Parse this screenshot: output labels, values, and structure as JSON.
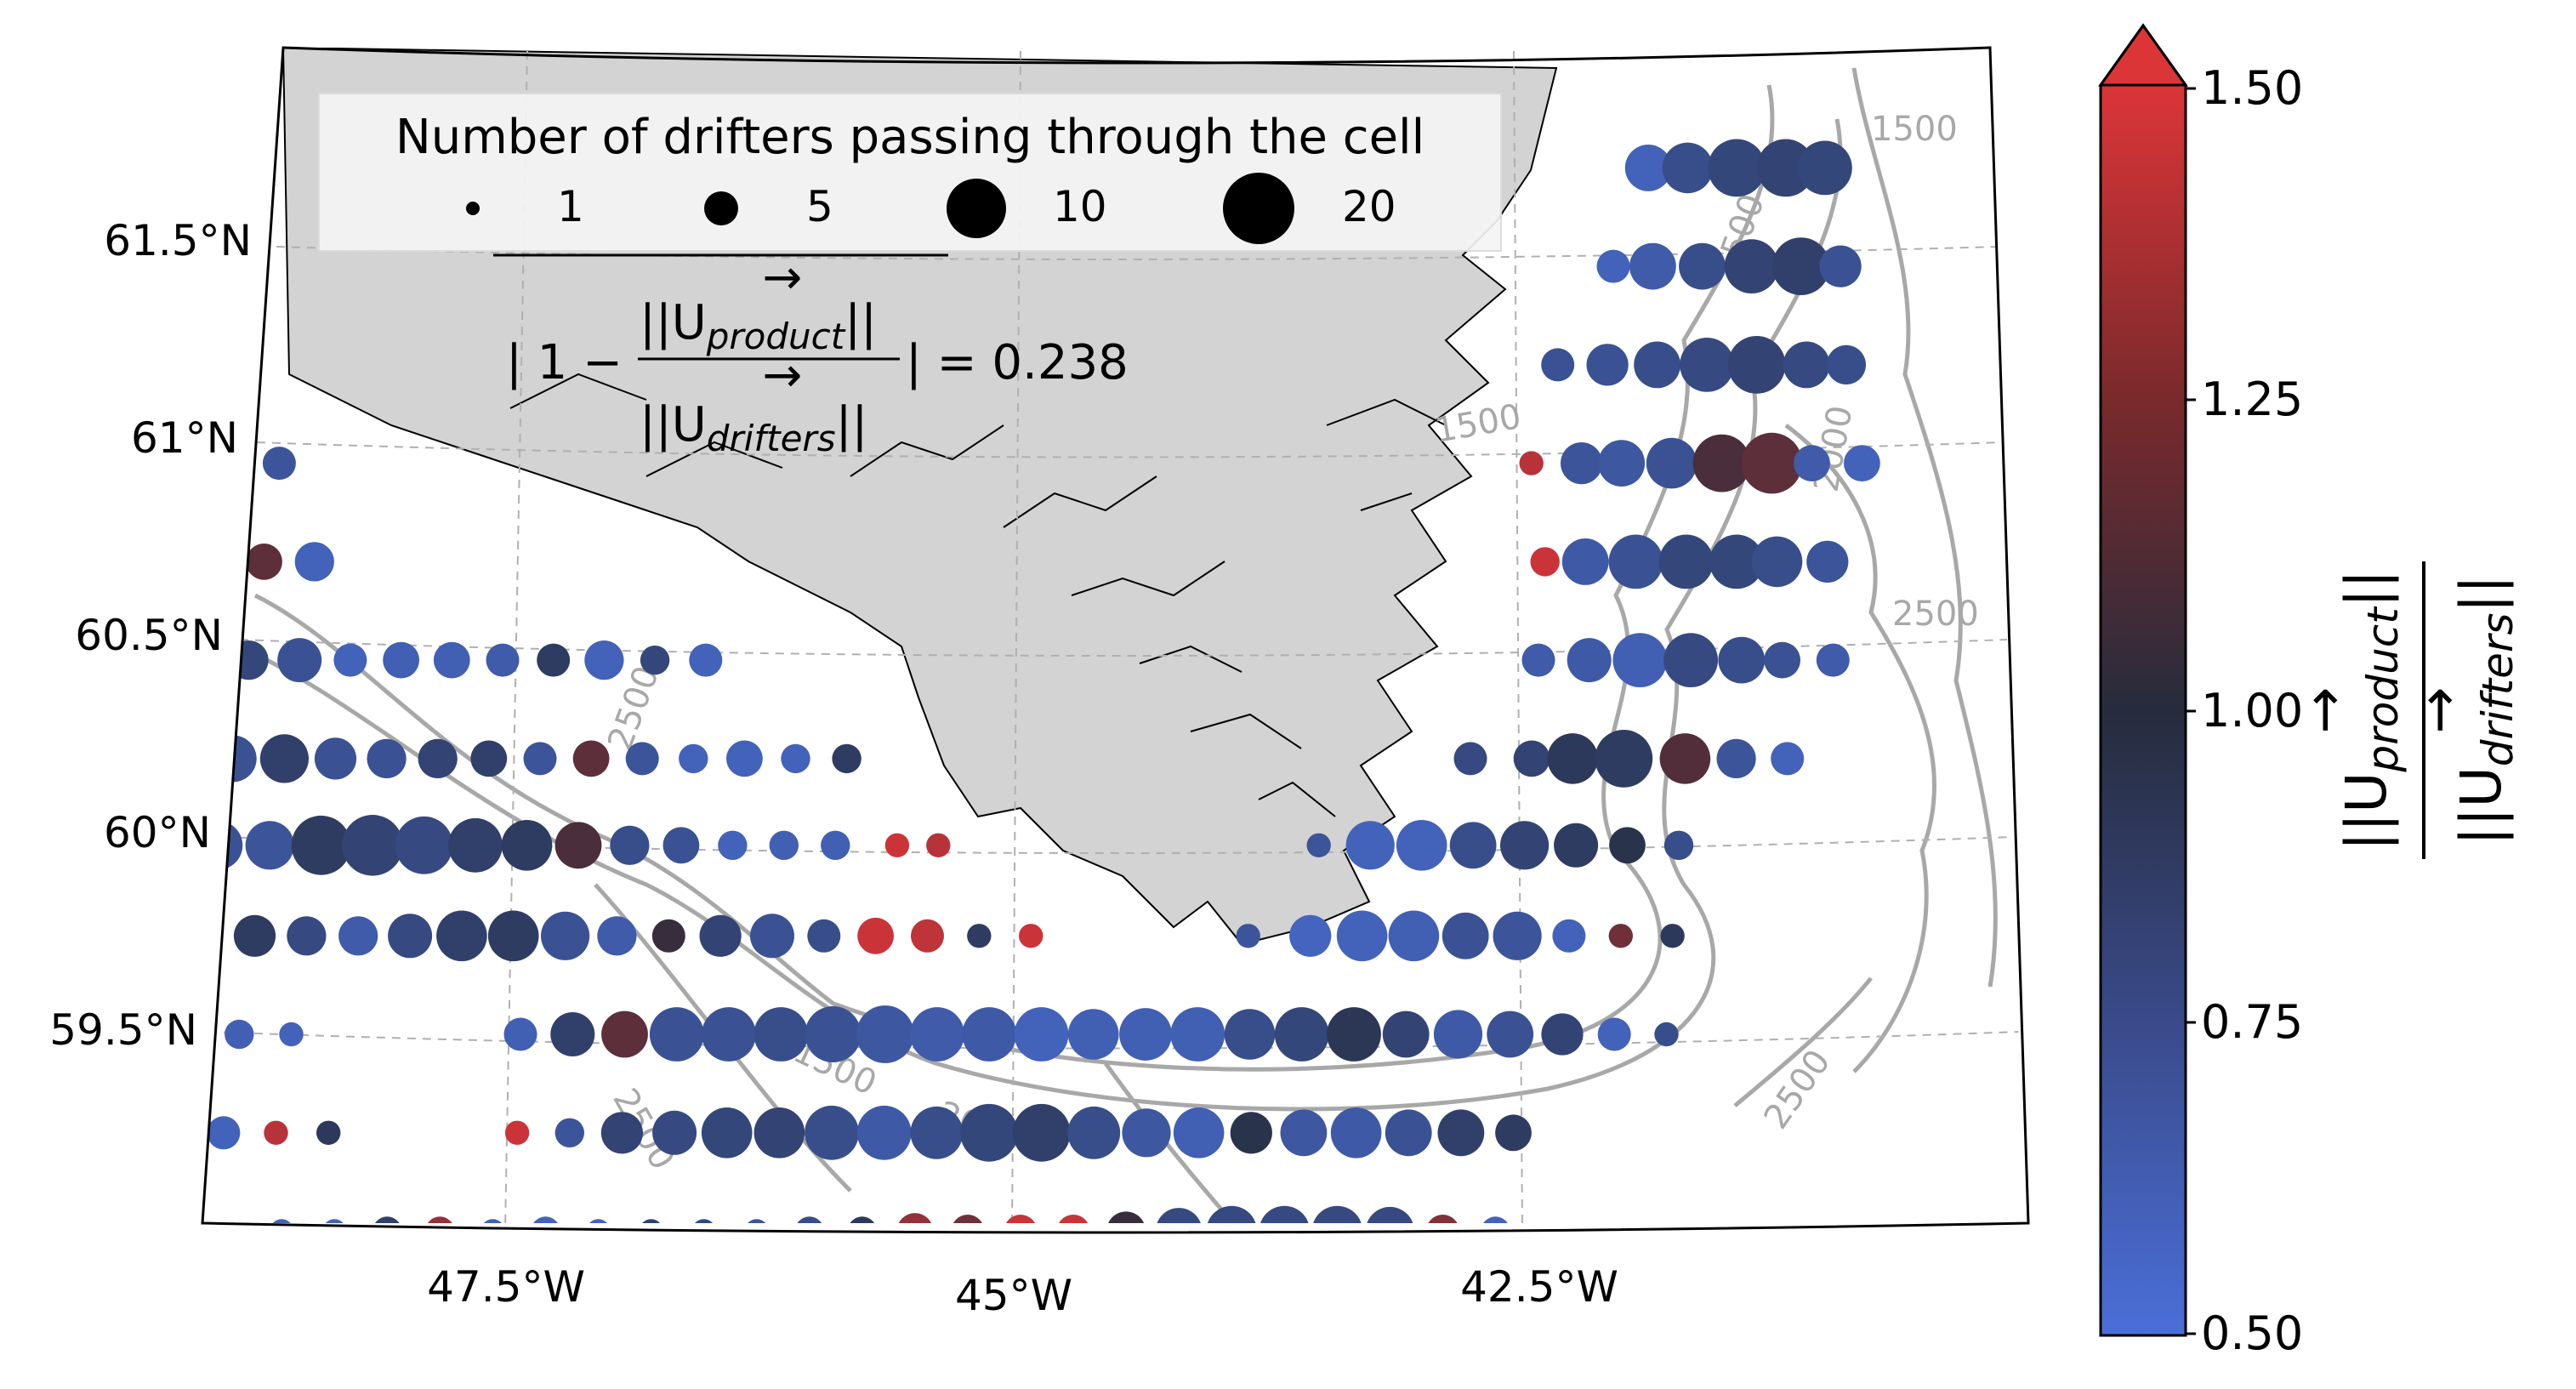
{
  "legend": {
    "title": "Number of drifters passing through the cell",
    "sizes": [
      "1",
      "5",
      "10",
      "20"
    ]
  },
  "annotation": {
    "prefix": "| 1 −",
    "numerator": "||U",
    "numerator_sub": "product",
    "denominator": "||U",
    "denominator_sub": "drifters",
    "bars": "||",
    "suffix": "|  = 0.238",
    "arrow": "→"
  },
  "axes": {
    "lat_labels": [
      "61.5°N",
      "61°N",
      "60.5°N",
      "60°N",
      "59.5°N"
    ],
    "lon_labels": [
      "47.5°W",
      "45°W",
      "42.5°W"
    ]
  },
  "contour_labels": [
    "1500",
    "2500",
    "2500",
    "2500",
    "1500",
    "2000",
    "1500",
    "2000",
    "1500",
    "2500"
  ],
  "colorbar": {
    "ticks": [
      "1.50",
      "1.25",
      "1.00",
      "0.75",
      "0.50"
    ],
    "label_num": "||U",
    "label_num_sub": "product",
    "label_den": "||U",
    "label_den_sub": "drifters",
    "label_bars": "||",
    "arrow": "→",
    "range": [
      0.5,
      1.5
    ],
    "extend": "max",
    "colors": {
      "low": "#4a6fd8",
      "mid": "#262c3c",
      "high": "#dc3538"
    }
  },
  "chart_data": {
    "type": "scatter",
    "title": "",
    "xlabel": "",
    "ylabel": "",
    "value_range": [
      0.5,
      1.5
    ],
    "summary_value": 0.238,
    "rows": [
      {
        "lat": 61.7,
        "points": [
          [
            -41.8,
            0.6,
            8
          ],
          [
            -41.6,
            0.75,
            10
          ],
          [
            -41.35,
            0.8,
            14
          ],
          [
            -41.1,
            0.82,
            14
          ],
          [
            -40.9,
            0.8,
            12
          ]
        ]
      },
      {
        "lat": 61.45,
        "points": [
          [
            -42.0,
            0.6,
            3
          ],
          [
            -41.8,
            0.65,
            8
          ],
          [
            -41.55,
            0.75,
            8
          ],
          [
            -41.3,
            0.82,
            12
          ],
          [
            -41.05,
            0.85,
            14
          ],
          [
            -40.85,
            0.72,
            6
          ]
        ]
      },
      {
        "lat": 61.2,
        "points": [
          [
            -42.3,
            0.72,
            3
          ],
          [
            -42.05,
            0.72,
            6
          ],
          [
            -41.8,
            0.75,
            8
          ],
          [
            -41.55,
            0.78,
            12
          ],
          [
            -41.3,
            0.82,
            14
          ],
          [
            -41.05,
            0.78,
            8
          ],
          [
            -40.85,
            0.75,
            5
          ]
        ]
      },
      {
        "lat": 60.95,
        "points": [
          [
            -48.95,
            1.15,
            4
          ],
          [
            -48.7,
            0.7,
            3
          ],
          [
            -42.45,
            1.4,
            1
          ],
          [
            -42.2,
            0.7,
            6
          ],
          [
            -42.0,
            0.68,
            8
          ],
          [
            -41.75,
            0.72,
            10
          ],
          [
            -41.5,
            1.1,
            14
          ],
          [
            -41.25,
            1.15,
            16
          ],
          [
            -41.05,
            0.65,
            4
          ],
          [
            -40.8,
            0.6,
            4
          ]
        ]
      },
      {
        "lat": 60.7,
        "points": [
          [
            -49.0,
            0.9,
            3
          ],
          [
            -48.75,
            1.15,
            4
          ],
          [
            -48.5,
            0.6,
            5
          ],
          [
            -42.4,
            1.45,
            2
          ],
          [
            -42.2,
            0.66,
            8
          ],
          [
            -41.95,
            0.72,
            12
          ],
          [
            -41.7,
            0.8,
            12
          ],
          [
            -41.45,
            0.8,
            12
          ],
          [
            -41.25,
            0.75,
            10
          ],
          [
            -41.0,
            0.7,
            6
          ]
        ]
      },
      {
        "lat": 60.45,
        "points": [
          [
            -49.05,
            0.78,
            6
          ],
          [
            -48.8,
            0.8,
            5
          ],
          [
            -48.55,
            0.72,
            7
          ],
          [
            -48.3,
            0.6,
            3
          ],
          [
            -48.05,
            0.62,
            4
          ],
          [
            -47.8,
            0.62,
            4
          ],
          [
            -47.55,
            0.65,
            3
          ],
          [
            -47.3,
            0.88,
            3
          ],
          [
            -47.05,
            0.6,
            5
          ],
          [
            -46.8,
            0.8,
            2
          ],
          [
            -46.55,
            0.6,
            3
          ],
          [
            -42.45,
            0.65,
            3
          ],
          [
            -42.2,
            0.66,
            7
          ],
          [
            -41.95,
            0.62,
            12
          ],
          [
            -41.7,
            0.78,
            12
          ],
          [
            -41.45,
            0.75,
            8
          ],
          [
            -41.25,
            0.72,
            4
          ],
          [
            -41.0,
            0.65,
            3
          ]
        ]
      },
      {
        "lat": 60.2,
        "points": [
          [
            -49.1,
            0.62,
            10
          ],
          [
            -48.85,
            0.72,
            8
          ],
          [
            -48.6,
            0.85,
            9
          ],
          [
            -48.35,
            0.72,
            6
          ],
          [
            -48.1,
            0.72,
            5
          ],
          [
            -47.85,
            0.82,
            5
          ],
          [
            -47.6,
            0.85,
            4
          ],
          [
            -47.35,
            0.7,
            3
          ],
          [
            -47.1,
            1.15,
            4
          ],
          [
            -46.85,
            0.7,
            3
          ],
          [
            -46.6,
            0.6,
            2
          ],
          [
            -46.35,
            0.6,
            4
          ],
          [
            -46.1,
            0.6,
            2
          ],
          [
            -45.85,
            0.88,
            2
          ],
          [
            -42.8,
            0.78,
            3
          ],
          [
            -42.5,
            0.82,
            4
          ],
          [
            -42.3,
            0.9,
            10
          ],
          [
            -42.05,
            0.88,
            14
          ],
          [
            -41.75,
            1.12,
            10
          ],
          [
            -41.5,
            0.7,
            5
          ],
          [
            -41.25,
            0.6,
            3
          ]
        ]
      },
      {
        "lat": 59.98,
        "points": [
          [
            -49.15,
            0.62,
            9
          ],
          [
            -48.9,
            0.72,
            9
          ],
          [
            -48.65,
            0.7,
            9
          ],
          [
            -48.4,
            0.88,
            15
          ],
          [
            -48.15,
            0.82,
            16
          ],
          [
            -47.9,
            0.78,
            14
          ],
          [
            -47.65,
            0.85,
            12
          ],
          [
            -47.4,
            0.88,
            10
          ],
          [
            -47.15,
            1.1,
            8
          ],
          [
            -46.9,
            0.75,
            5
          ],
          [
            -46.65,
            0.72,
            4
          ],
          [
            -46.4,
            0.6,
            2
          ],
          [
            -46.15,
            0.62,
            2
          ],
          [
            -45.9,
            0.62,
            2
          ],
          [
            -45.6,
            1.45,
            1
          ],
          [
            -45.4,
            1.4,
            1
          ],
          [
            -43.55,
            0.7,
            1
          ],
          [
            -43.3,
            0.6,
            9
          ],
          [
            -43.05,
            0.6,
            10
          ],
          [
            -42.8,
            0.75,
            8
          ],
          [
            -42.55,
            0.82,
            9
          ],
          [
            -42.3,
            0.88,
            7
          ],
          [
            -42.05,
            0.95,
            4
          ],
          [
            -41.8,
            0.75,
            2
          ]
        ]
      },
      {
        "lat": 59.75,
        "points": [
          [
            -49.2,
            0.85,
            2
          ],
          [
            -48.95,
            1.1,
            4
          ],
          [
            -48.7,
            0.88,
            6
          ],
          [
            -48.45,
            0.78,
            5
          ],
          [
            -48.2,
            0.65,
            5
          ],
          [
            -47.95,
            0.78,
            7
          ],
          [
            -47.7,
            0.85,
            10
          ],
          [
            -47.45,
            0.88,
            10
          ],
          [
            -47.2,
            0.72,
            9
          ],
          [
            -46.95,
            0.65,
            5
          ],
          [
            -46.7,
            1.05,
            3
          ],
          [
            -46.45,
            0.82,
            6
          ],
          [
            -46.2,
            0.72,
            7
          ],
          [
            -45.95,
            0.75,
            3
          ],
          [
            -45.7,
            1.45,
            4
          ],
          [
            -45.45,
            1.42,
            3
          ],
          [
            -45.2,
            0.88,
            1
          ],
          [
            -44.95,
            1.45,
            1
          ],
          [
            -43.9,
            0.7,
            1
          ],
          [
            -43.6,
            0.58,
            6
          ],
          [
            -43.35,
            0.6,
            10
          ],
          [
            -43.1,
            0.62,
            10
          ],
          [
            -42.85,
            0.72,
            8
          ],
          [
            -42.6,
            0.7,
            9
          ],
          [
            -42.35,
            0.6,
            3
          ],
          [
            -42.1,
            1.2,
            1
          ],
          [
            -41.85,
            0.9,
            1
          ]
        ]
      },
      {
        "lat": 59.5,
        "points": [
          [
            -49.25,
            0.6,
            1
          ],
          [
            -49.0,
            0.6,
            2
          ],
          [
            -48.75,
            0.62,
            2
          ],
          [
            -48.5,
            0.6,
            1
          ],
          [
            -47.4,
            0.62,
            3
          ],
          [
            -47.15,
            0.85,
            7
          ],
          [
            -46.9,
            1.15,
            8
          ],
          [
            -46.65,
            0.72,
            12
          ],
          [
            -46.4,
            0.72,
            12
          ],
          [
            -46.15,
            0.75,
            12
          ],
          [
            -45.9,
            0.72,
            13
          ],
          [
            -45.65,
            0.68,
            14
          ],
          [
            -45.4,
            0.65,
            12
          ],
          [
            -45.15,
            0.66,
            12
          ],
          [
            -44.9,
            0.6,
            12
          ],
          [
            -44.65,
            0.62,
            10
          ],
          [
            -44.4,
            0.62,
            11
          ],
          [
            -44.15,
            0.62,
            12
          ],
          [
            -43.9,
            0.75,
            10
          ],
          [
            -43.65,
            0.8,
            12
          ],
          [
            -43.4,
            0.92,
            12
          ],
          [
            -43.15,
            0.82,
            8
          ],
          [
            -42.9,
            0.66,
            9
          ],
          [
            -42.65,
            0.72,
            8
          ],
          [
            -42.4,
            0.82,
            6
          ],
          [
            -42.15,
            0.6,
            3
          ],
          [
            -41.9,
            0.75,
            1
          ]
        ]
      },
      {
        "lat": 59.25,
        "points": [
          [
            -49.3,
            0.85,
            1
          ],
          [
            -49.05,
            0.85,
            1
          ],
          [
            -48.8,
            0.6,
            3
          ],
          [
            -48.55,
            1.4,
            1
          ],
          [
            -48.3,
            0.9,
            1
          ],
          [
            -47.4,
            1.45,
            1
          ],
          [
            -47.15,
            0.7,
            2
          ],
          [
            -46.9,
            0.82,
            6
          ],
          [
            -46.65,
            0.78,
            7
          ],
          [
            -46.4,
            0.8,
            10
          ],
          [
            -46.15,
            0.82,
            10
          ],
          [
            -45.9,
            0.75,
            12
          ],
          [
            -45.65,
            0.66,
            12
          ],
          [
            -45.4,
            0.75,
            11
          ],
          [
            -45.15,
            0.8,
            14
          ],
          [
            -44.9,
            0.85,
            14
          ],
          [
            -44.65,
            0.75,
            11
          ],
          [
            -44.4,
            0.68,
            9
          ],
          [
            -44.15,
            0.62,
            10
          ],
          [
            -43.9,
            0.95,
            6
          ],
          [
            -43.65,
            0.68,
            8
          ],
          [
            -43.4,
            0.66,
            10
          ],
          [
            -43.15,
            0.72,
            8
          ],
          [
            -42.9,
            0.85,
            8
          ],
          [
            -42.65,
            0.88,
            4
          ]
        ]
      },
      {
        "lat": 59.0,
        "points": [
          [
            -48.5,
            0.6,
            1
          ],
          [
            -48.25,
            0.6,
            1
          ],
          [
            -48.0,
            0.85,
            2
          ],
          [
            -47.75,
            1.3,
            2
          ],
          [
            -47.5,
            0.62,
            1
          ],
          [
            -47.25,
            0.6,
            2
          ],
          [
            -47.0,
            0.6,
            1
          ],
          [
            -46.75,
            0.85,
            1
          ],
          [
            -46.5,
            0.8,
            1
          ],
          [
            -46.25,
            0.7,
            1
          ],
          [
            -46.0,
            0.75,
            2
          ],
          [
            -45.75,
            0.9,
            2
          ],
          [
            -45.5,
            1.3,
            4
          ],
          [
            -45.25,
            1.2,
            3
          ],
          [
            -45.0,
            1.45,
            3
          ],
          [
            -44.75,
            1.45,
            3
          ],
          [
            -44.5,
            1.05,
            5
          ],
          [
            -44.25,
            0.78,
            8
          ],
          [
            -44.0,
            0.78,
            10
          ],
          [
            -43.75,
            0.78,
            10
          ],
          [
            -43.5,
            0.78,
            10
          ],
          [
            -43.25,
            0.78,
            9
          ],
          [
            -43.0,
            1.25,
            3
          ],
          [
            -42.75,
            0.6,
            2
          ]
        ]
      }
    ]
  }
}
